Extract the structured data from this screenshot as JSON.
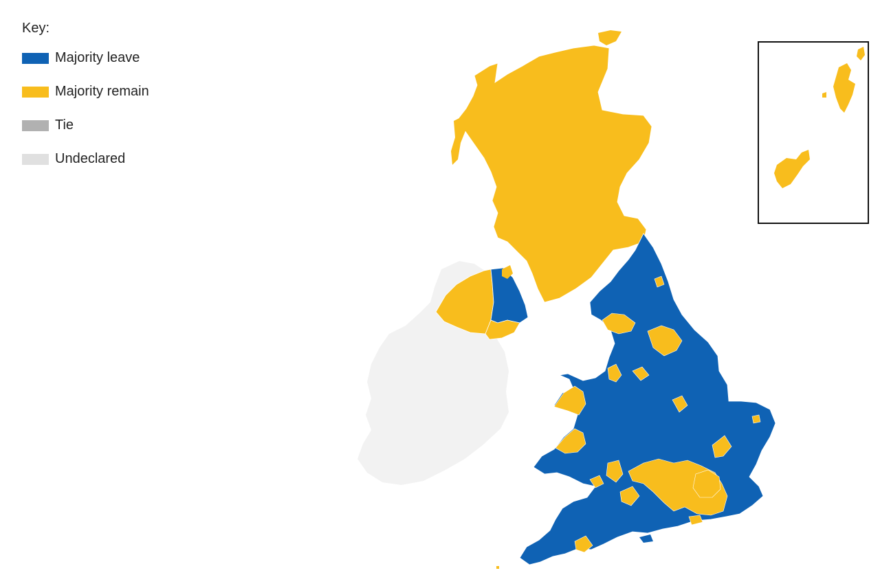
{
  "key": {
    "title": "Key:",
    "items": [
      {
        "label": "Majority leave",
        "color": "#0f62b4"
      },
      {
        "label": "Majority remain",
        "color": "#f8bd1d"
      },
      {
        "label": "Tie",
        "color": "#b1b1b1"
      },
      {
        "label": "Undeclared",
        "color": "#e0e0e0"
      }
    ]
  },
  "colors": {
    "leave": "#0f62b4",
    "remain": "#f8bd1d",
    "undeclared_land": "#f2f2f2",
    "boundary": "#ffffff"
  },
  "regions": [
    {
      "name": "scotland",
      "result": "remain"
    },
    {
      "name": "northern-ireland-east",
      "result": "leave"
    },
    {
      "name": "northern-ireland-west",
      "result": "remain"
    },
    {
      "name": "england-wales",
      "result": "leave"
    },
    {
      "name": "london",
      "result": "remain"
    },
    {
      "name": "ireland",
      "result": "undeclared"
    }
  ]
}
